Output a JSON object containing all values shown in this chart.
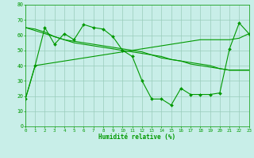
{
  "xlabel": "Humidité relative (%)",
  "background_color": "#c8eee8",
  "grid_color": "#99ccbb",
  "line_color": "#009900",
  "xlim": [
    0,
    23
  ],
  "ylim": [
    0,
    80
  ],
  "yticks": [
    0,
    10,
    20,
    30,
    40,
    50,
    60,
    70,
    80
  ],
  "xticks": [
    0,
    1,
    2,
    3,
    4,
    5,
    6,
    7,
    8,
    9,
    10,
    11,
    12,
    13,
    14,
    15,
    16,
    17,
    18,
    19,
    20,
    21,
    22,
    23
  ],
  "series1_y": [
    18,
    40,
    65,
    54,
    61,
    57,
    67,
    65,
    64,
    59,
    50,
    46,
    30,
    18,
    18,
    14,
    25,
    21,
    21,
    21,
    22,
    51,
    68,
    61
  ],
  "series2_y": [
    18,
    40,
    41,
    42,
    43,
    44,
    45,
    46,
    47,
    48,
    49,
    50,
    51,
    52,
    53,
    54,
    55,
    56,
    57,
    57,
    57,
    57,
    58,
    61
  ],
  "series3_y": [
    65,
    64,
    62,
    59,
    57,
    55,
    54,
    53,
    52,
    51,
    50,
    49,
    48,
    47,
    45,
    44,
    43,
    41,
    40,
    39,
    38,
    37,
    37,
    37
  ],
  "series4_y": [
    65,
    63,
    61,
    59,
    57,
    56,
    55,
    54,
    53,
    52,
    51,
    50,
    49,
    47,
    46,
    44,
    43,
    42,
    41,
    40,
    38,
    37,
    37,
    37
  ]
}
